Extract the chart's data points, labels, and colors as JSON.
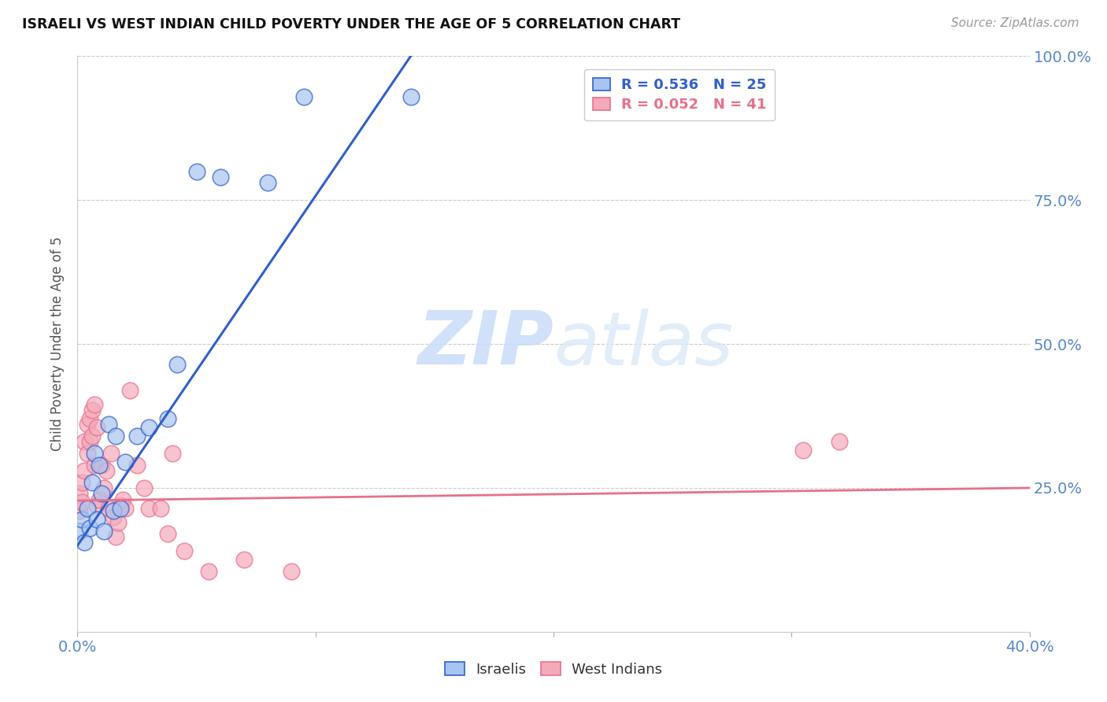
{
  "title": "ISRAELI VS WEST INDIAN CHILD POVERTY UNDER THE AGE OF 5 CORRELATION CHART",
  "source": "Source: ZipAtlas.com",
  "ylabel": "Child Poverty Under the Age of 5",
  "y_ticks": [
    0.0,
    0.25,
    0.5,
    0.75,
    1.0
  ],
  "y_tick_labels": [
    "",
    "25.0%",
    "50.0%",
    "75.0%",
    "100.0%"
  ],
  "x_range": [
    0.0,
    0.4
  ],
  "y_range": [
    0.0,
    1.0
  ],
  "legend_blue_r": "R = 0.536",
  "legend_blue_n": "N = 25",
  "legend_pink_r": "R = 0.052",
  "legend_pink_n": "N = 41",
  "blue_color": "#A8C4F0",
  "pink_color": "#F4AABB",
  "blue_line_color": "#3060CC",
  "pink_line_color": "#E8708A",
  "watermark_zip": "ZIP",
  "watermark_atlas": "atlas",
  "background_color": "#FFFFFF",
  "grid_color": "#CCCCCC",
  "israelis_x": [
    0.001,
    0.002,
    0.003,
    0.004,
    0.005,
    0.006,
    0.007,
    0.008,
    0.009,
    0.01,
    0.011,
    0.013,
    0.015,
    0.016,
    0.018,
    0.02,
    0.025,
    0.03,
    0.038,
    0.042,
    0.05,
    0.06,
    0.08,
    0.095,
    0.14
  ],
  "israelis_y": [
    0.175,
    0.195,
    0.155,
    0.215,
    0.18,
    0.26,
    0.31,
    0.195,
    0.29,
    0.24,
    0.175,
    0.36,
    0.21,
    0.34,
    0.215,
    0.295,
    0.34,
    0.355,
    0.37,
    0.465,
    0.8,
    0.79,
    0.78,
    0.93,
    0.93
  ],
  "westindian_x": [
    0.001,
    0.001,
    0.002,
    0.002,
    0.003,
    0.003,
    0.004,
    0.004,
    0.005,
    0.005,
    0.006,
    0.006,
    0.007,
    0.007,
    0.008,
    0.008,
    0.009,
    0.01,
    0.011,
    0.012,
    0.013,
    0.014,
    0.015,
    0.016,
    0.017,
    0.018,
    0.019,
    0.02,
    0.022,
    0.025,
    0.028,
    0.03,
    0.035,
    0.038,
    0.04,
    0.045,
    0.055,
    0.07,
    0.09,
    0.305,
    0.32
  ],
  "westindian_y": [
    0.24,
    0.21,
    0.26,
    0.225,
    0.33,
    0.28,
    0.36,
    0.31,
    0.37,
    0.33,
    0.385,
    0.34,
    0.395,
    0.29,
    0.355,
    0.22,
    0.23,
    0.29,
    0.25,
    0.28,
    0.215,
    0.31,
    0.2,
    0.165,
    0.19,
    0.22,
    0.23,
    0.215,
    0.42,
    0.29,
    0.25,
    0.215,
    0.215,
    0.17,
    0.31,
    0.14,
    0.105,
    0.125,
    0.105,
    0.315,
    0.33
  ]
}
